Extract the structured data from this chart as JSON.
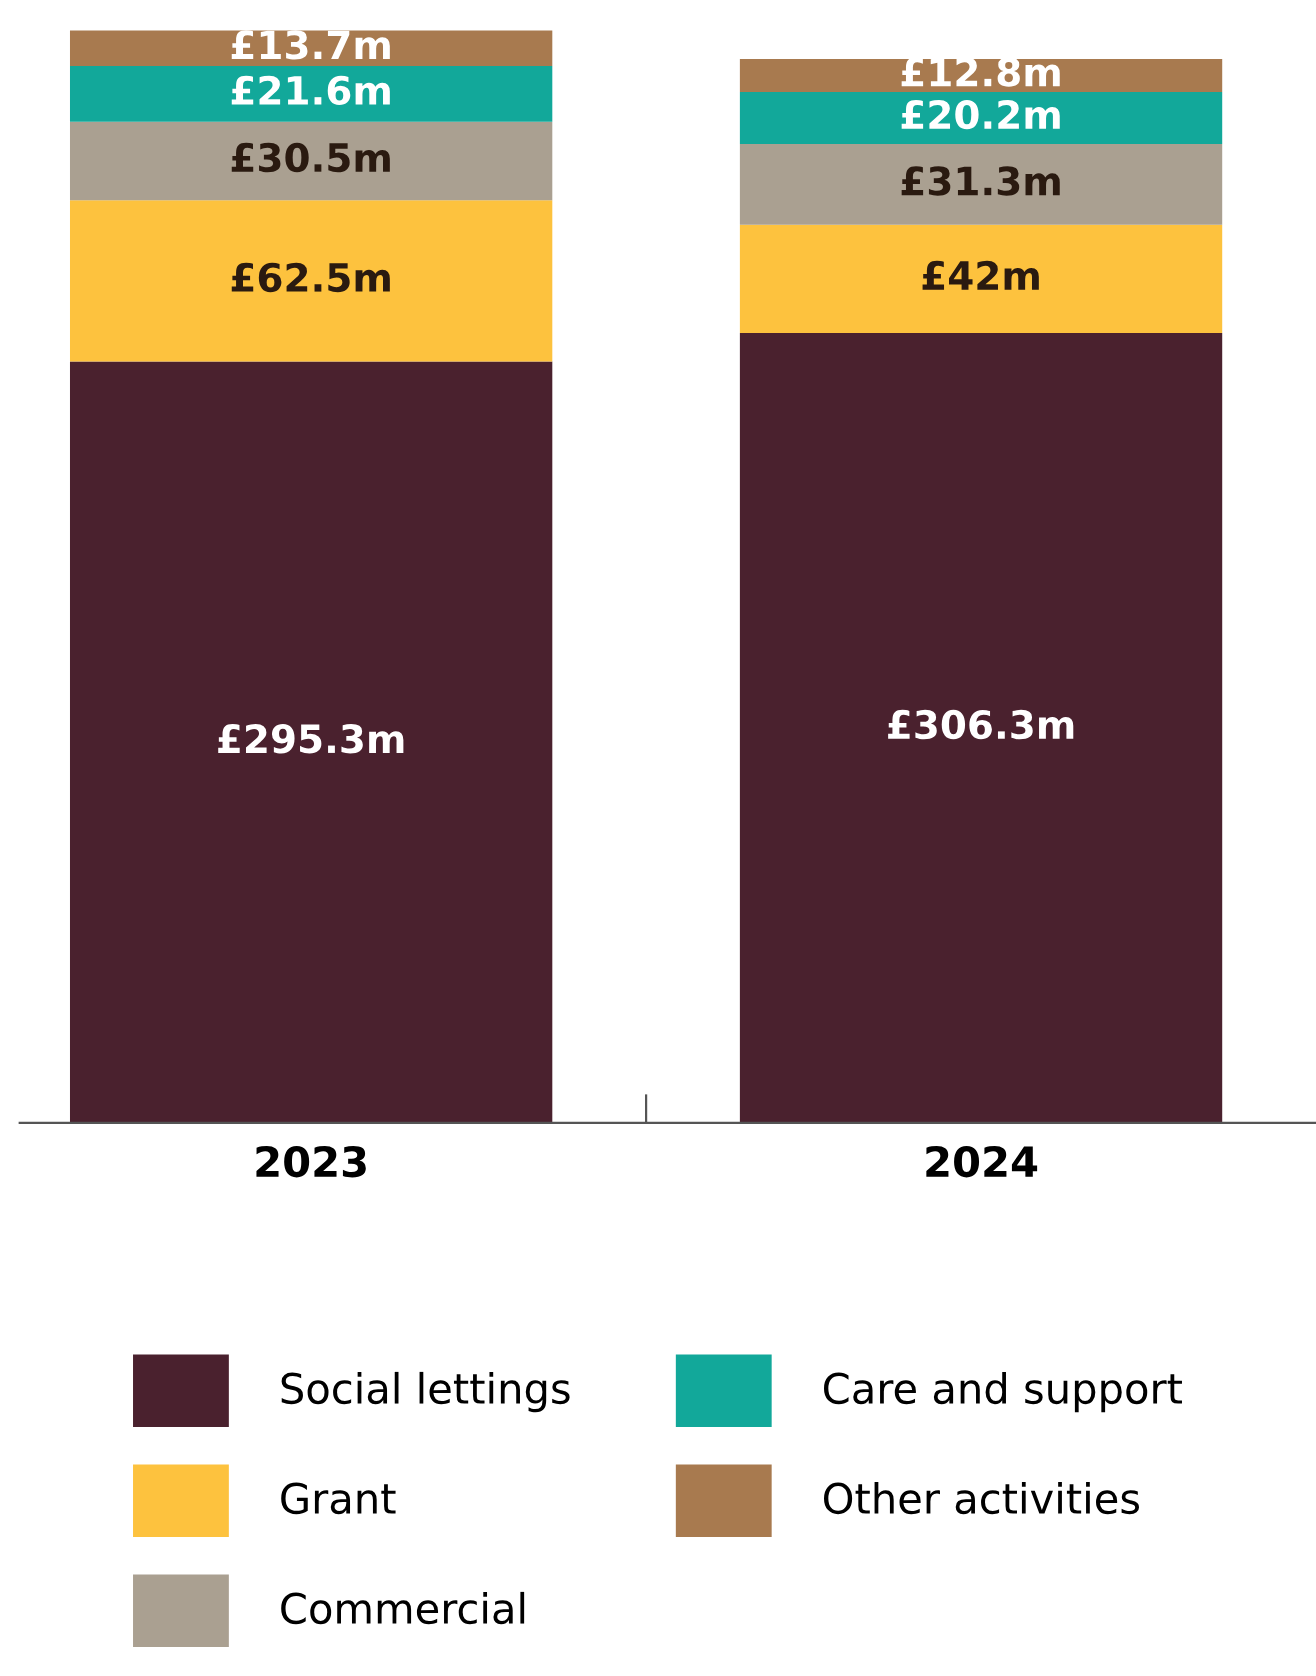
{
  "chart_data": {
    "type": "bar",
    "stacked": true,
    "categories": [
      "2023",
      "2024"
    ],
    "series": [
      {
        "name": "Social lettings",
        "color": "#4a212e",
        "values": [
          295.3,
          306.3
        ],
        "value_labels": [
          "£295.3m",
          "£306.3m"
        ]
      },
      {
        "name": "Grant",
        "color": "#fdc23e",
        "values": [
          62.5,
          42
        ],
        "value_labels": [
          "£62.5m",
          "£42m"
        ]
      },
      {
        "name": "Commercial",
        "color": "#aaa091",
        "values": [
          30.5,
          31.3
        ],
        "value_labels": [
          "£30.5m",
          "£31.3m"
        ]
      },
      {
        "name": "Care and support",
        "color": "#12a89a",
        "values": [
          21.6,
          20.2
        ],
        "value_labels": [
          "£21.6m",
          "£20.2m"
        ]
      },
      {
        "name": "Other activities",
        "color": "#a87a4f",
        "values": [
          13.7,
          12.8
        ],
        "value_labels": [
          "£13.7m",
          "£12.8m"
        ]
      }
    ],
    "legend": "bottom",
    "grid": false
  }
}
